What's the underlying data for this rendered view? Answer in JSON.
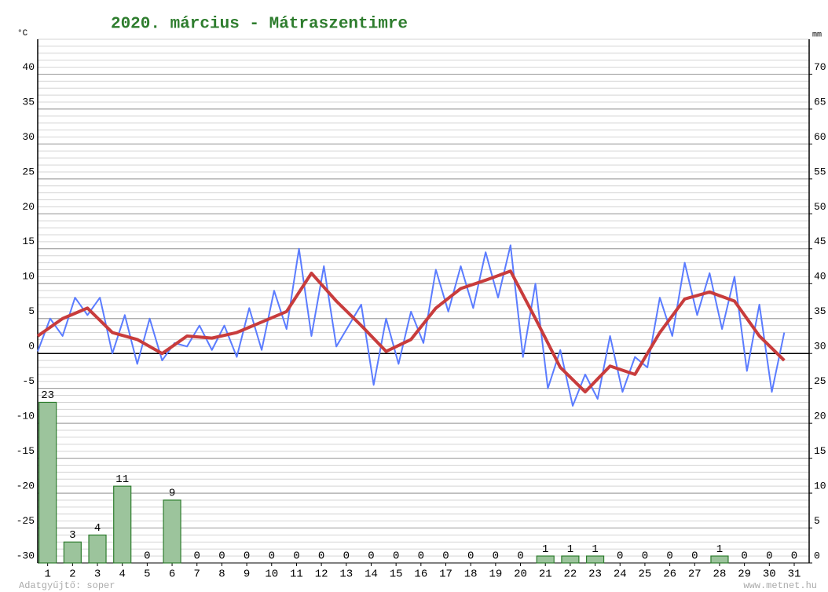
{
  "chart_data": {
    "type": "line",
    "title": "2020. március - Mátraszentimre",
    "ylabel": "°C",
    "y2label": "mm",
    "footer_left": "Adatgyűjtő: soper",
    "footer_right": "www.metnet.hu",
    "xlim": [
      0.6,
      31.6
    ],
    "xticks": [
      1,
      2,
      3,
      4,
      5,
      6,
      7,
      8,
      9,
      10,
      11,
      12,
      13,
      14,
      15,
      16,
      17,
      18,
      19,
      20,
      21,
      22,
      23,
      24,
      25,
      26,
      27,
      28,
      29,
      30,
      31
    ],
    "ylim": [
      -30,
      45
    ],
    "yticks": [
      -30,
      -25,
      -20,
      -15,
      -10,
      -5,
      0,
      5,
      10,
      15,
      20,
      25,
      30,
      35,
      40
    ],
    "y2lim": [
      0,
      75
    ],
    "y2ticks": [
      0,
      5,
      10,
      15,
      20,
      25,
      30,
      35,
      40,
      45,
      50,
      55,
      60,
      65,
      70
    ],
    "grid": true,
    "series": [
      {
        "color": "#5b7cff",
        "type": "line",
        "x": [
          0.6,
          1.1,
          1.6,
          2.1,
          2.6,
          3.1,
          3.6,
          4.1,
          4.6,
          5.1,
          5.6,
          6.1,
          6.6,
          7.1,
          7.6,
          8.1,
          8.6,
          9.1,
          9.6,
          10.1,
          10.6,
          11.1,
          11.6,
          12.1,
          12.6,
          13.1,
          13.6,
          14.1,
          14.6,
          15.1,
          15.6,
          16.1,
          16.6,
          17.1,
          17.6,
          18.1,
          18.6,
          19.1,
          19.6,
          20.1,
          20.6,
          21.1,
          21.6,
          22.1,
          22.6,
          23.1,
          23.6,
          24.1,
          24.6,
          25.1,
          25.6,
          26.1,
          26.6,
          27.1,
          27.6,
          28.1,
          28.6,
          29.1,
          29.6,
          30.1,
          30.6
        ],
        "values": [
          0.3,
          5,
          2.5,
          8,
          5.5,
          8,
          0,
          5.5,
          -1.5,
          5,
          -1,
          1.5,
          1,
          4,
          0.5,
          4,
          -0.5,
          6.5,
          0.5,
          9,
          3.5,
          15,
          2.5,
          12.5,
          1,
          4,
          7,
          -4.5,
          5,
          -1.5,
          6,
          1.5,
          12,
          6,
          12.5,
          6.5,
          14.5,
          8,
          15.5,
          -0.5,
          10,
          -5,
          0.5,
          -7.5,
          -3,
          -6.5,
          2.5,
          -5.5,
          -0.5,
          -2,
          8,
          2.5,
          13,
          5.5,
          11.5,
          3.5,
          11,
          -2.5,
          7,
          -5.5,
          3
        ]
      },
      {
        "color": "#c83c3c",
        "type": "line",
        "x": [
          0.6,
          1.6,
          2.6,
          3.6,
          4.6,
          5.6,
          6.6,
          7.6,
          8.6,
          9.6,
          10.6,
          11.6,
          12.6,
          13.6,
          14.6,
          15.6,
          16.6,
          17.6,
          18.6,
          19.6,
          20.6,
          21.6,
          22.6,
          23.6,
          24.6,
          25.6,
          26.6,
          27.6,
          28.6,
          29.6,
          30.6
        ],
        "values": [
          2.5,
          5,
          6.5,
          3,
          2,
          0,
          2.5,
          2.2,
          3,
          4.5,
          6,
          11.5,
          7.5,
          4,
          0.3,
          2,
          6.5,
          9.3,
          10.5,
          11.8,
          5,
          -2,
          -5.5,
          -1.8,
          -3,
          3,
          7.8,
          8.8,
          7.5,
          2.5,
          -1
        ]
      },
      {
        "color": "#9cc49c",
        "type": "bar",
        "axis": "y2",
        "values": [
          23,
          3,
          4,
          11,
          0,
          9,
          0,
          0,
          0,
          0,
          0,
          0,
          0,
          0,
          0,
          0,
          0,
          0,
          0,
          0,
          1,
          1,
          1,
          0,
          0,
          0,
          0,
          1,
          0,
          0,
          0
        ]
      }
    ]
  }
}
